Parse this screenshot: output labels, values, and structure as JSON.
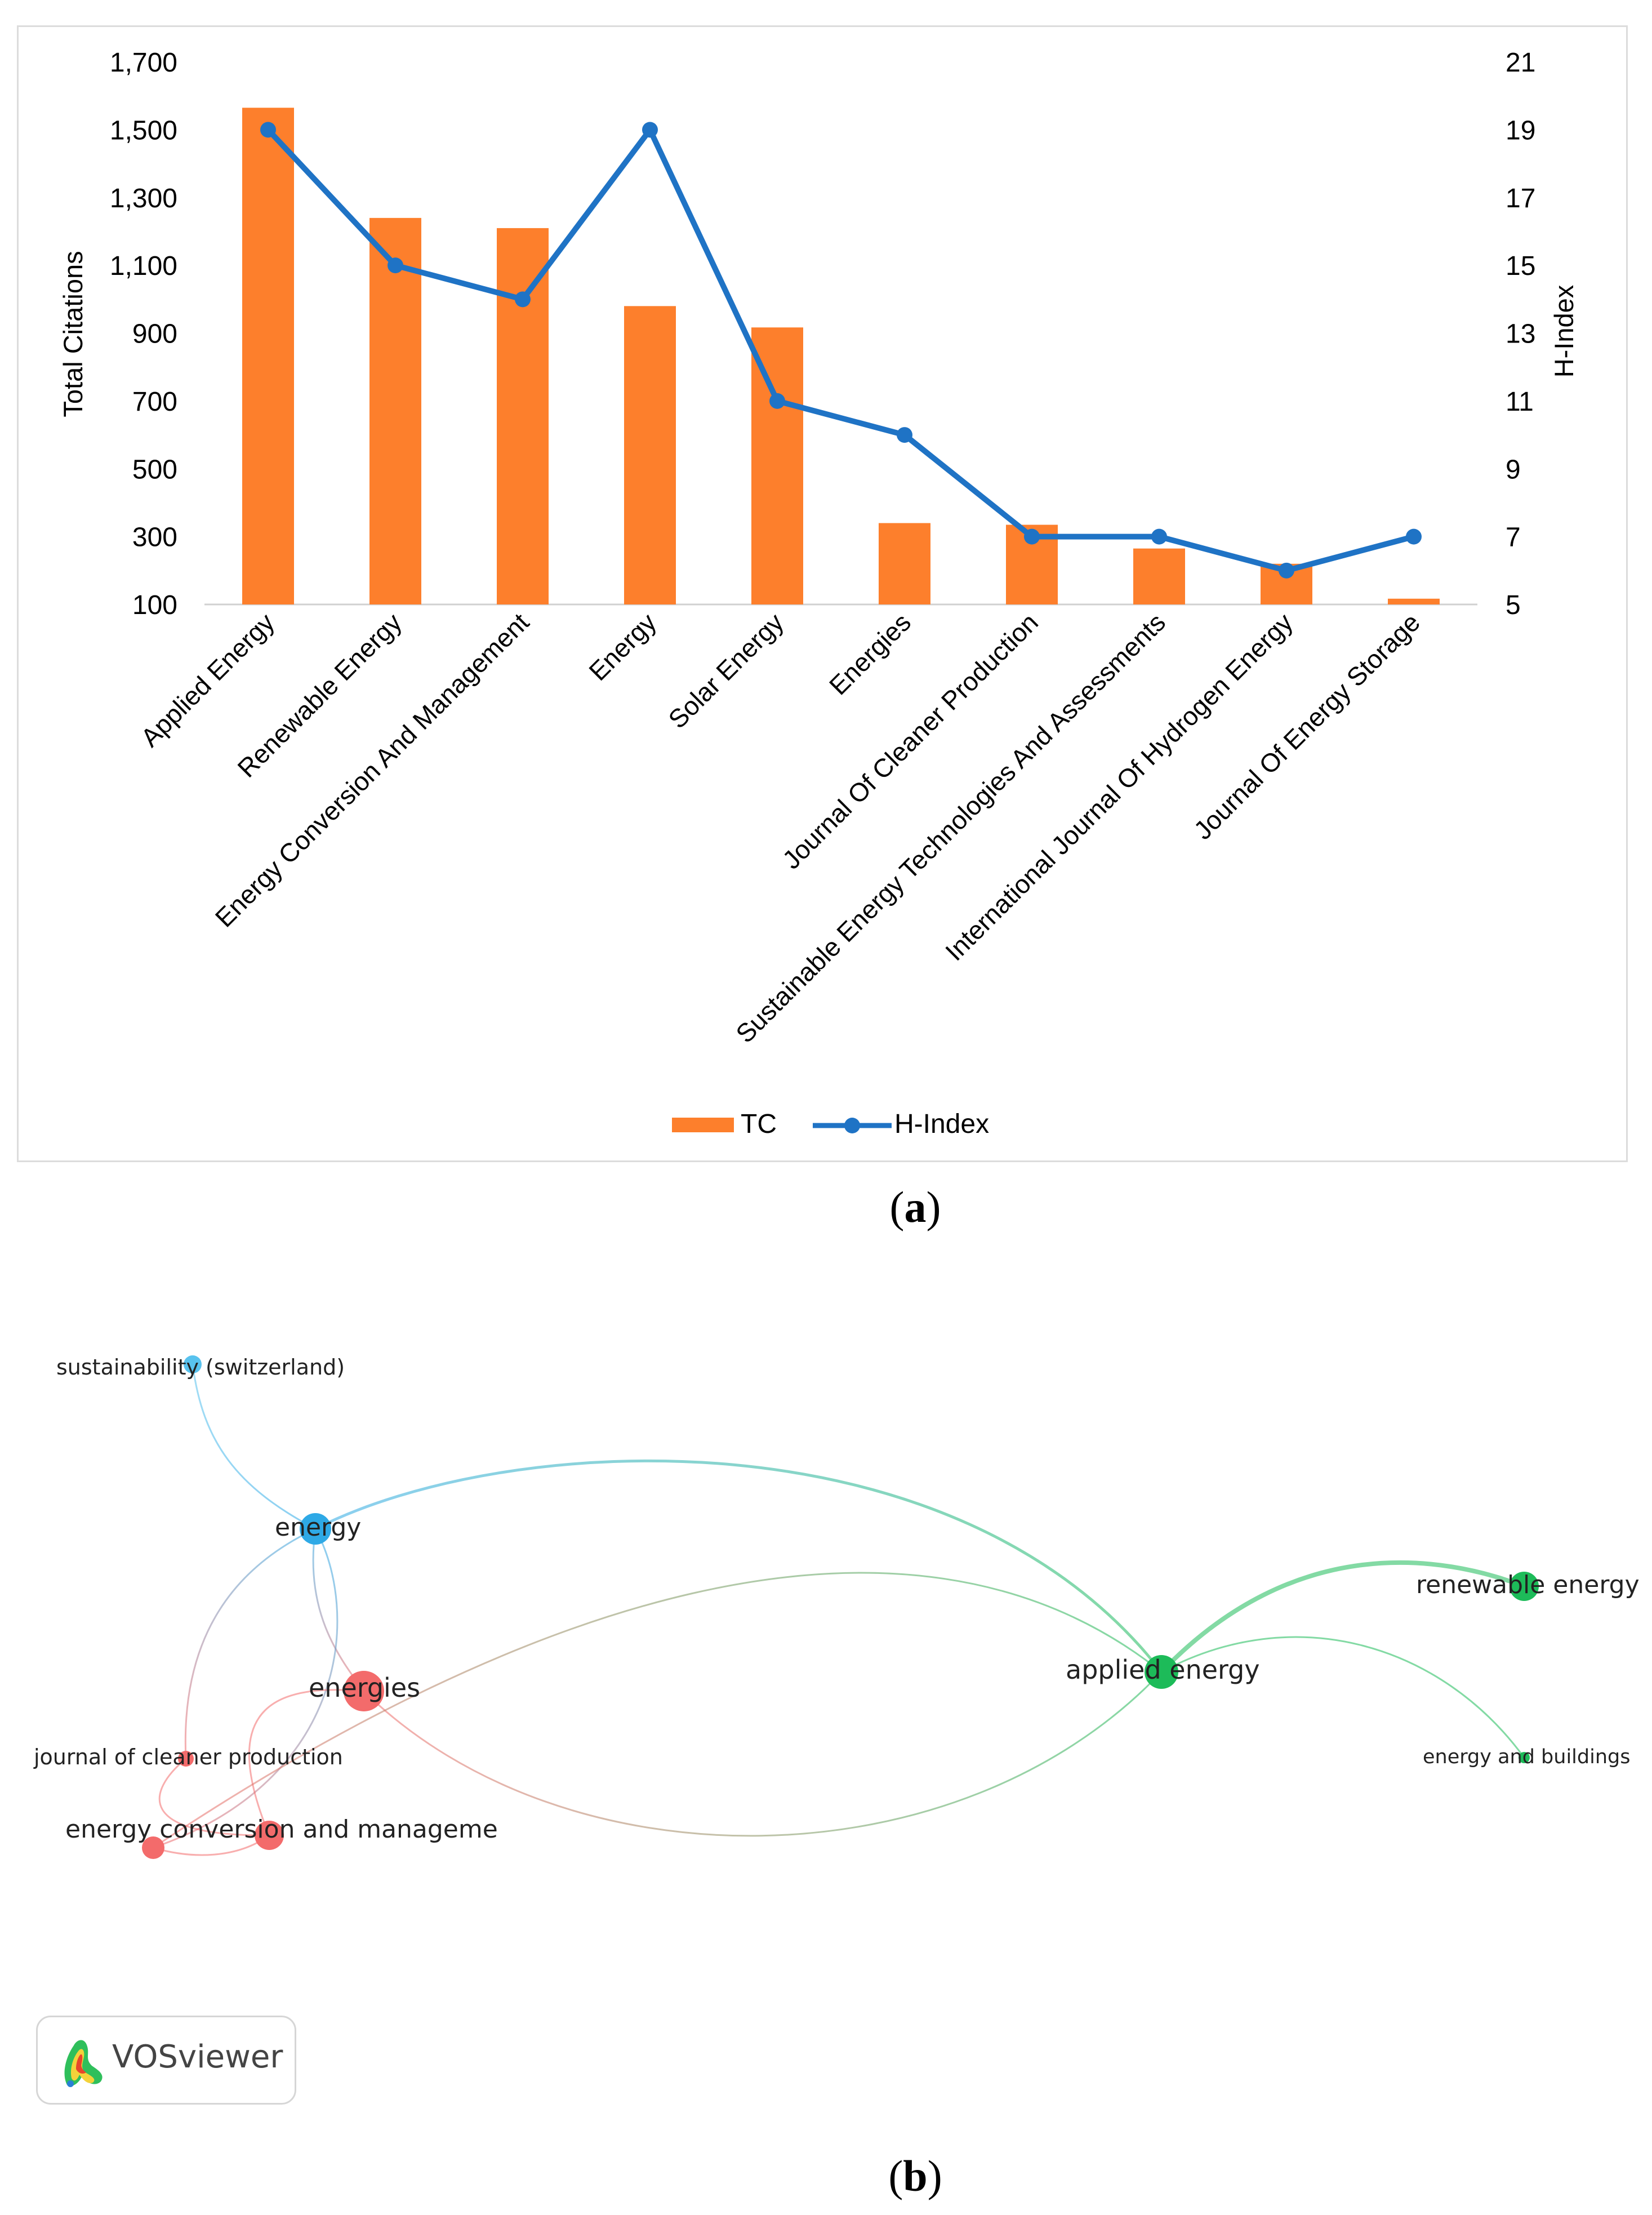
{
  "chart_data": {
    "type": "bar",
    "title": "",
    "categories": [
      "Applied Energy",
      "Renewable Energy",
      "Energy Conversion And Management",
      "Energy",
      "Solar Energy",
      "Energies",
      "Journal Of Cleaner Production",
      "Sustainable Energy Technologies And Assessments",
      "International Journal Of Hydrogen Energy",
      "Journal Of Energy Storage"
    ],
    "series": [
      {
        "name": "TC",
        "kind": "bar",
        "axis": "left",
        "color": "#fd7f2c",
        "values": [
          1565,
          1240,
          1210,
          980,
          917,
          340,
          335,
          265,
          220,
          117
        ]
      },
      {
        "name": "H-Index",
        "kind": "line",
        "axis": "right",
        "color": "#1f73c5",
        "values": [
          19,
          15,
          14,
          19,
          11,
          10,
          7,
          7,
          6,
          7
        ]
      }
    ],
    "ylabel": "Total Citations",
    "y2label": "H-Index",
    "ylim": [
      100,
      1700
    ],
    "y2lim": [
      5,
      21
    ],
    "yticks": [
      "100",
      "300",
      "500",
      "700",
      "900",
      "1,100",
      "1,300",
      "1,500",
      "1,700"
    ],
    "y2ticks": [
      "5",
      "7",
      "9",
      "11",
      "13",
      "15",
      "17",
      "19",
      "21"
    ],
    "legend": "bottom-center"
  },
  "captions": {
    "a": "a",
    "b": "b"
  },
  "network": {
    "nodes": [
      {
        "id": "sustainability",
        "label": "sustainability (switzerland)",
        "color": "#58c2ee",
        "weight": 1
      },
      {
        "id": "energy",
        "label": "energy",
        "color": "#2ea9e6",
        "weight": 3
      },
      {
        "id": "energies",
        "label": "energies",
        "color": "#f36b6b",
        "weight": 4
      },
      {
        "id": "jcp",
        "label": "journal of cleaner production",
        "color": "#f36b6b",
        "weight": 1
      },
      {
        "id": "ecm",
        "label": "energy conversion and manageme",
        "color": "#f36b6b",
        "weight": 2
      },
      {
        "id": "ecm2",
        "label": "",
        "color": "#f36b6b",
        "weight": 2
      },
      {
        "id": "applied",
        "label": "applied energy",
        "color": "#1dbb59",
        "weight": 3
      },
      {
        "id": "renewable",
        "label": "renewable energy",
        "color": "#1dbb59",
        "weight": 2
      },
      {
        "id": "buildings",
        "label": "energy and buildings",
        "color": "#1dbb59",
        "weight": 1
      }
    ],
    "edges": [
      [
        "sustainability",
        "energy"
      ],
      [
        "energy",
        "applied"
      ],
      [
        "energy",
        "energies"
      ],
      [
        "energy",
        "jcp"
      ],
      [
        "energy",
        "ecm"
      ],
      [
        "energies",
        "applied"
      ],
      [
        "energies",
        "ecm2"
      ],
      [
        "ecm",
        "applied"
      ],
      [
        "jcp",
        "ecm2"
      ],
      [
        "ecm2",
        "ecm"
      ],
      [
        "applied",
        "renewable"
      ],
      [
        "applied",
        "buildings"
      ]
    ]
  },
  "logo": {
    "text": "VOSviewer"
  }
}
